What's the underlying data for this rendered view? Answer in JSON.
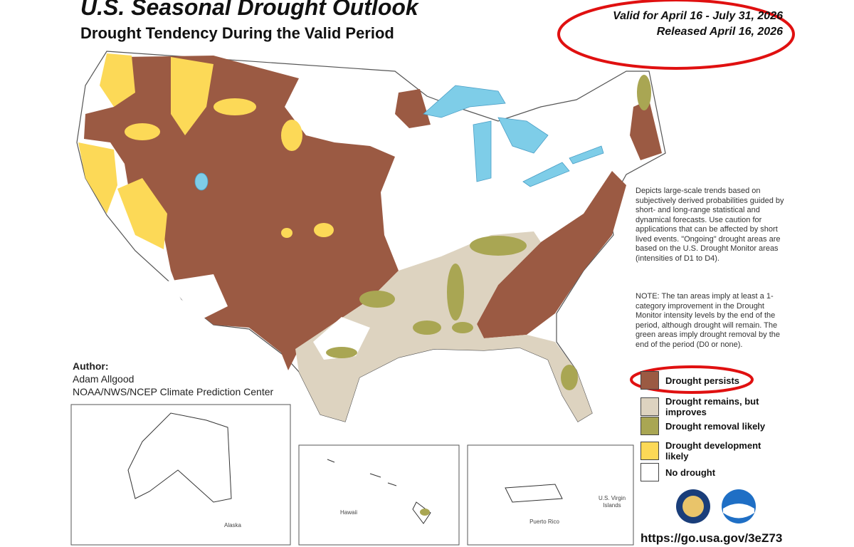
{
  "header": {
    "title": "U.S. Seasonal Drought Outlook",
    "subtitle": "Drought Tendency During the Valid Period",
    "valid": "Valid for April 16 - July 31, 2026",
    "released": "Released April 16, 2026"
  },
  "description": "Depicts large-scale trends based on subjectively derived probabilities guided by short- and long-range statistical and dynamical forecasts. Use caution for applications that can be affected by short lived events. \"Ongoing\" drought areas are based on the U.S. Drought Monitor areas (intensities of D1 to D4).",
  "note": "NOTE: The tan areas imply at least a 1-category improvement in the Drought Monitor intensity levels by the end of the period, although drought will remain. The green areas imply drought removal by the end of the period (D0 or none).",
  "author": {
    "label": "Author:",
    "name": "Adam Allgood",
    "org": "NOAA/NWS/NCEP Climate Prediction Center"
  },
  "legend": [
    {
      "label": "Drought persists",
      "color": "#9b5a43"
    },
    {
      "label": "Drought remains, but improves",
      "color": "#ddd3c0"
    },
    {
      "label": "Drought removal likely",
      "color": "#a9a653"
    },
    {
      "label": "Drought development likely",
      "color": "#fcd957"
    },
    {
      "label": "No drought",
      "color": "#ffffff"
    }
  ],
  "insets": {
    "alaska": "Alaska",
    "hawaii": "Hawaii",
    "puerto_rico": "Puerto Rico",
    "virgin_islands": "U.S. Virgin Islands"
  },
  "url": "https://go.usa.gov/3eZ73"
}
